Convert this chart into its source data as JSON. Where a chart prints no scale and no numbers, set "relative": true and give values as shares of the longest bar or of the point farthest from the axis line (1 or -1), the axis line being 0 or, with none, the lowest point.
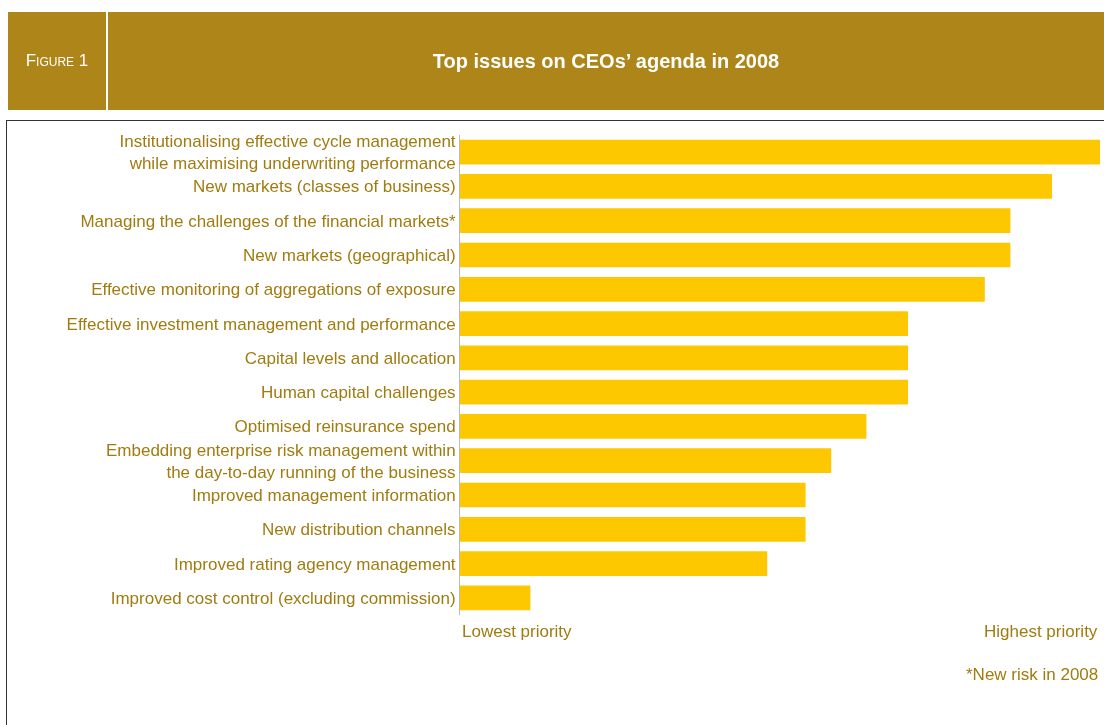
{
  "chart_data": {
    "type": "bar",
    "orientation": "horizontal",
    "relative": true,
    "title": "Top issues on CEOs’ agenda in 2008",
    "subtitle": "Figure 1",
    "categories": [
      "Institutionalising effective cycle management\nwhile maximising underwriting performance",
      "New markets (classes of business)",
      "Managing the challenges of the financial markets*",
      "New markets (geographical)",
      "Effective monitoring of aggregations of exposure",
      "Effective investment management and performance",
      "Capital levels and allocation",
      "Human capital challenges",
      "Optimised reinsurance spend",
      "Embedding enterprise risk management within\nthe day-to-day running of the business",
      "Improved management information",
      "New distribution channels",
      "Improved rating agency management",
      "Improved cost control (excluding commission)"
    ],
    "values": [
      1,
      0.925,
      0.86,
      0.86,
      0.82,
      0.7,
      0.7,
      0.7,
      0.635,
      0.58,
      0.54,
      0.54,
      0.48,
      0.11
    ],
    "color": "#fdc800",
    "annotations": [
      "Lowest priority",
      "Highest priority",
      "*New risk in 2008"
    ]
  }
}
